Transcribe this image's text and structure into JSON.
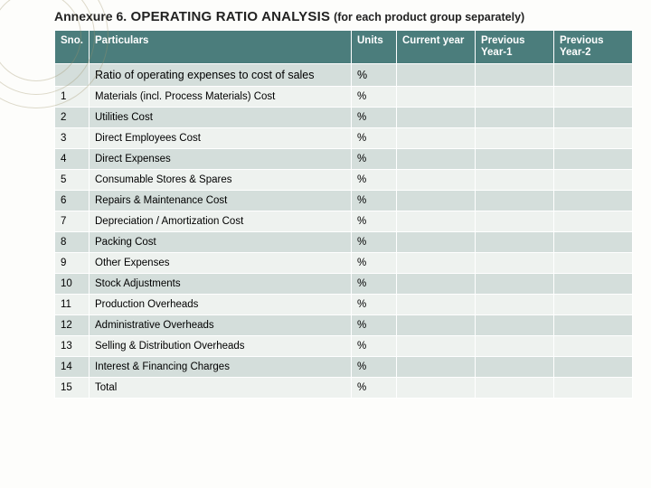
{
  "title": {
    "prefix": "Annexure 6.",
    "main": " OPERATING RATIO ANALYSIS",
    "suffix": "(for each product group separately)"
  },
  "columns": {
    "sno": "Sno.",
    "particulars": "Particulars",
    "units": "Units",
    "current": "Current year",
    "prev1": "Previous Year-1",
    "prev2": "Previous Year-2"
  },
  "subheader": {
    "particulars": "Ratio of operating expenses to cost of sales",
    "units": "%"
  },
  "rows": [
    {
      "sno": "1",
      "particulars": "Materials (incl. Process Materials) Cost",
      "units": "%"
    },
    {
      "sno": "2",
      "particulars": "Utilities Cost",
      "units": "%"
    },
    {
      "sno": "3",
      "particulars": "Direct Employees Cost",
      "units": "%"
    },
    {
      "sno": "4",
      "particulars": "Direct Expenses",
      "units": "%"
    },
    {
      "sno": "5",
      "particulars": "Consumable Stores & Spares",
      "units": "%"
    },
    {
      "sno": "6",
      "particulars": "Repairs & Maintenance Cost",
      "units": "%"
    },
    {
      "sno": "7",
      "particulars": "Depreciation / Amortization Cost",
      "units": "%"
    },
    {
      "sno": "8",
      "particulars": "Packing Cost",
      "units": "%"
    },
    {
      "sno": "9",
      "particulars": "Other Expenses",
      "units": "%"
    },
    {
      "sno": "10",
      "particulars": "Stock Adjustments",
      "units": "%"
    },
    {
      "sno": "11",
      "particulars": "Production Overheads",
      "units": "%"
    },
    {
      "sno": "12",
      "particulars": "Administrative Overheads",
      "units": "%"
    },
    {
      "sno": "13",
      "particulars": "Selling & Distribution Overheads",
      "units": "%"
    },
    {
      "sno": "14",
      "particulars": "Interest & Financing Charges",
      "units": "%"
    },
    {
      "sno": "15",
      "particulars": "Total",
      "units": "%"
    }
  ],
  "colors": {
    "header_bg": "#4b7d7c",
    "header_fg": "#ffffff",
    "row_light": "#eef2ef",
    "row_dark": "#d4dedb",
    "page_bg": "#fdfdfb"
  }
}
